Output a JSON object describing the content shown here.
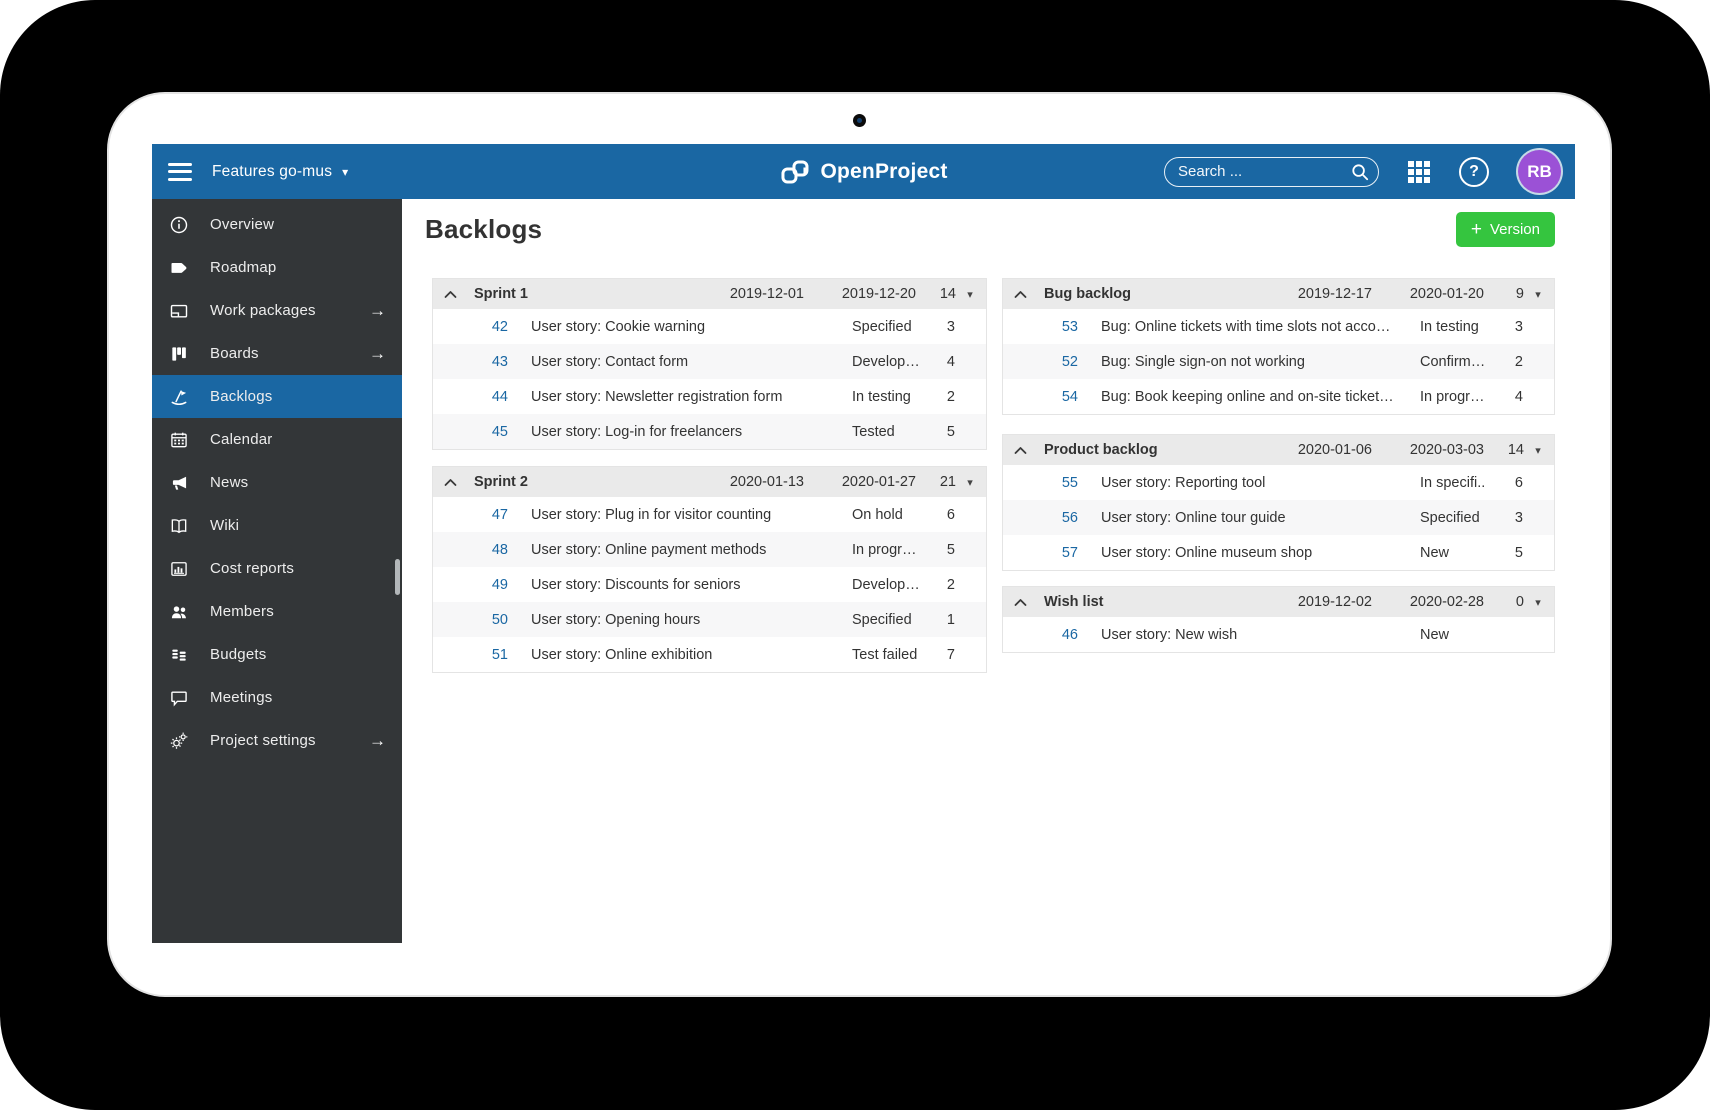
{
  "colors": {
    "topbar_blue": "#1A67A3",
    "sidebar_dark": "#333638",
    "accent_green": "#35C53F",
    "avatar_purple": "#9B51D6",
    "link_blue": "#1A67A3"
  },
  "ui": {
    "dropdown_glyph": "▾"
  },
  "topbar": {
    "project_name": "Features go-mus",
    "caret_glyph": "▾",
    "logo_text": "OpenProject",
    "search_placeholder": "Search ...",
    "help_glyph": "?",
    "avatar_initials": "RB"
  },
  "main": {
    "page_title": "Backlogs",
    "version_button": {
      "plus": "+",
      "label": "Version"
    }
  },
  "sidebar": {
    "arrow_glyph": "→",
    "items": [
      {
        "label": "Overview",
        "icon": "info-icon",
        "arrow": false,
        "active": false
      },
      {
        "label": "Roadmap",
        "icon": "roadmap-icon",
        "arrow": false,
        "active": false
      },
      {
        "label": "Work packages",
        "icon": "work-packages-icon",
        "arrow": true,
        "active": false
      },
      {
        "label": "Boards",
        "icon": "boards-icon",
        "arrow": true,
        "active": false
      },
      {
        "label": "Backlogs",
        "icon": "backlogs-icon",
        "arrow": false,
        "active": true
      },
      {
        "label": "Calendar",
        "icon": "calendar-icon",
        "arrow": false,
        "active": false
      },
      {
        "label": "News",
        "icon": "megaphone-icon",
        "arrow": false,
        "active": false
      },
      {
        "label": "Wiki",
        "icon": "book-icon",
        "arrow": false,
        "active": false
      },
      {
        "label": "Cost reports",
        "icon": "cost-reports-icon",
        "arrow": false,
        "active": false
      },
      {
        "label": "Members",
        "icon": "members-icon",
        "arrow": false,
        "active": false
      },
      {
        "label": "Budgets",
        "icon": "budgets-icon",
        "arrow": false,
        "active": false
      },
      {
        "label": "Meetings",
        "icon": "meetings-icon",
        "arrow": false,
        "active": false
      },
      {
        "label": "Project settings",
        "icon": "gears-icon",
        "arrow": true,
        "active": false
      }
    ]
  },
  "columns": {
    "left": [
      {
        "title": "Sprint 1",
        "start_date": "2019-12-01",
        "end_date": "2019-12-20",
        "count": "14",
        "rows": [
          {
            "id": "42",
            "subject": "User story: Cookie warning",
            "status": "Specified",
            "points": "3"
          },
          {
            "id": "43",
            "subject": "User story: Contact form",
            "status": "Develop…",
            "points": "4"
          },
          {
            "id": "44",
            "subject": "User story: Newsletter registration form",
            "status": "In testing",
            "points": "2"
          },
          {
            "id": "45",
            "subject": "User story: Log-in for freelancers",
            "status": "Tested",
            "points": "5"
          }
        ]
      },
      {
        "title": "Sprint 2",
        "start_date": "2020-01-13",
        "end_date": "2020-01-27",
        "count": "21",
        "rows": [
          {
            "id": "47",
            "subject": "User story: Plug in for visitor counting",
            "status": "On hold",
            "points": "6"
          },
          {
            "id": "48",
            "subject": "User story: Online payment methods",
            "status": "In progr…",
            "points": "5"
          },
          {
            "id": "49",
            "subject": "User story: Discounts for seniors",
            "status": "Develop…",
            "points": "2"
          },
          {
            "id": "50",
            "subject": "User story: Opening hours",
            "status": "Specified",
            "points": "1"
          },
          {
            "id": "51",
            "subject": "User story: Online exhibition",
            "status": "Test failed",
            "points": "7"
          }
        ]
      }
    ],
    "right": [
      {
        "title": "Bug backlog",
        "start_date": "2019-12-17",
        "end_date": "2020-01-20",
        "count": "9",
        "rows": [
          {
            "id": "53",
            "subject": "Bug: Online tickets with time slots not acco…",
            "status": "In testing",
            "points": "3"
          },
          {
            "id": "52",
            "subject": "Bug: Single sign-on not working",
            "status": "Confirm…",
            "points": "2"
          },
          {
            "id": "54",
            "subject": "Bug: Book keeping online and on-site ticket…",
            "status": "In progr…",
            "points": "4"
          }
        ]
      },
      {
        "title": "Product backlog",
        "start_date": "2020-01-06",
        "end_date": "2020-03-03",
        "count": "14",
        "rows": [
          {
            "id": "55",
            "subject": "User story: Reporting tool",
            "status": "In specifi..",
            "points": "6"
          },
          {
            "id": "56",
            "subject": "User story: Online tour guide",
            "status": "Specified",
            "points": "3"
          },
          {
            "id": "57",
            "subject": "User story: Online museum shop",
            "status": "New",
            "points": "5"
          }
        ]
      },
      {
        "title": "Wish list",
        "start_date": "2019-12-02",
        "end_date": "2020-02-28",
        "count": "0",
        "rows": [
          {
            "id": "46",
            "subject": "User story: New wish",
            "status": "New",
            "points": ""
          }
        ]
      }
    ]
  }
}
